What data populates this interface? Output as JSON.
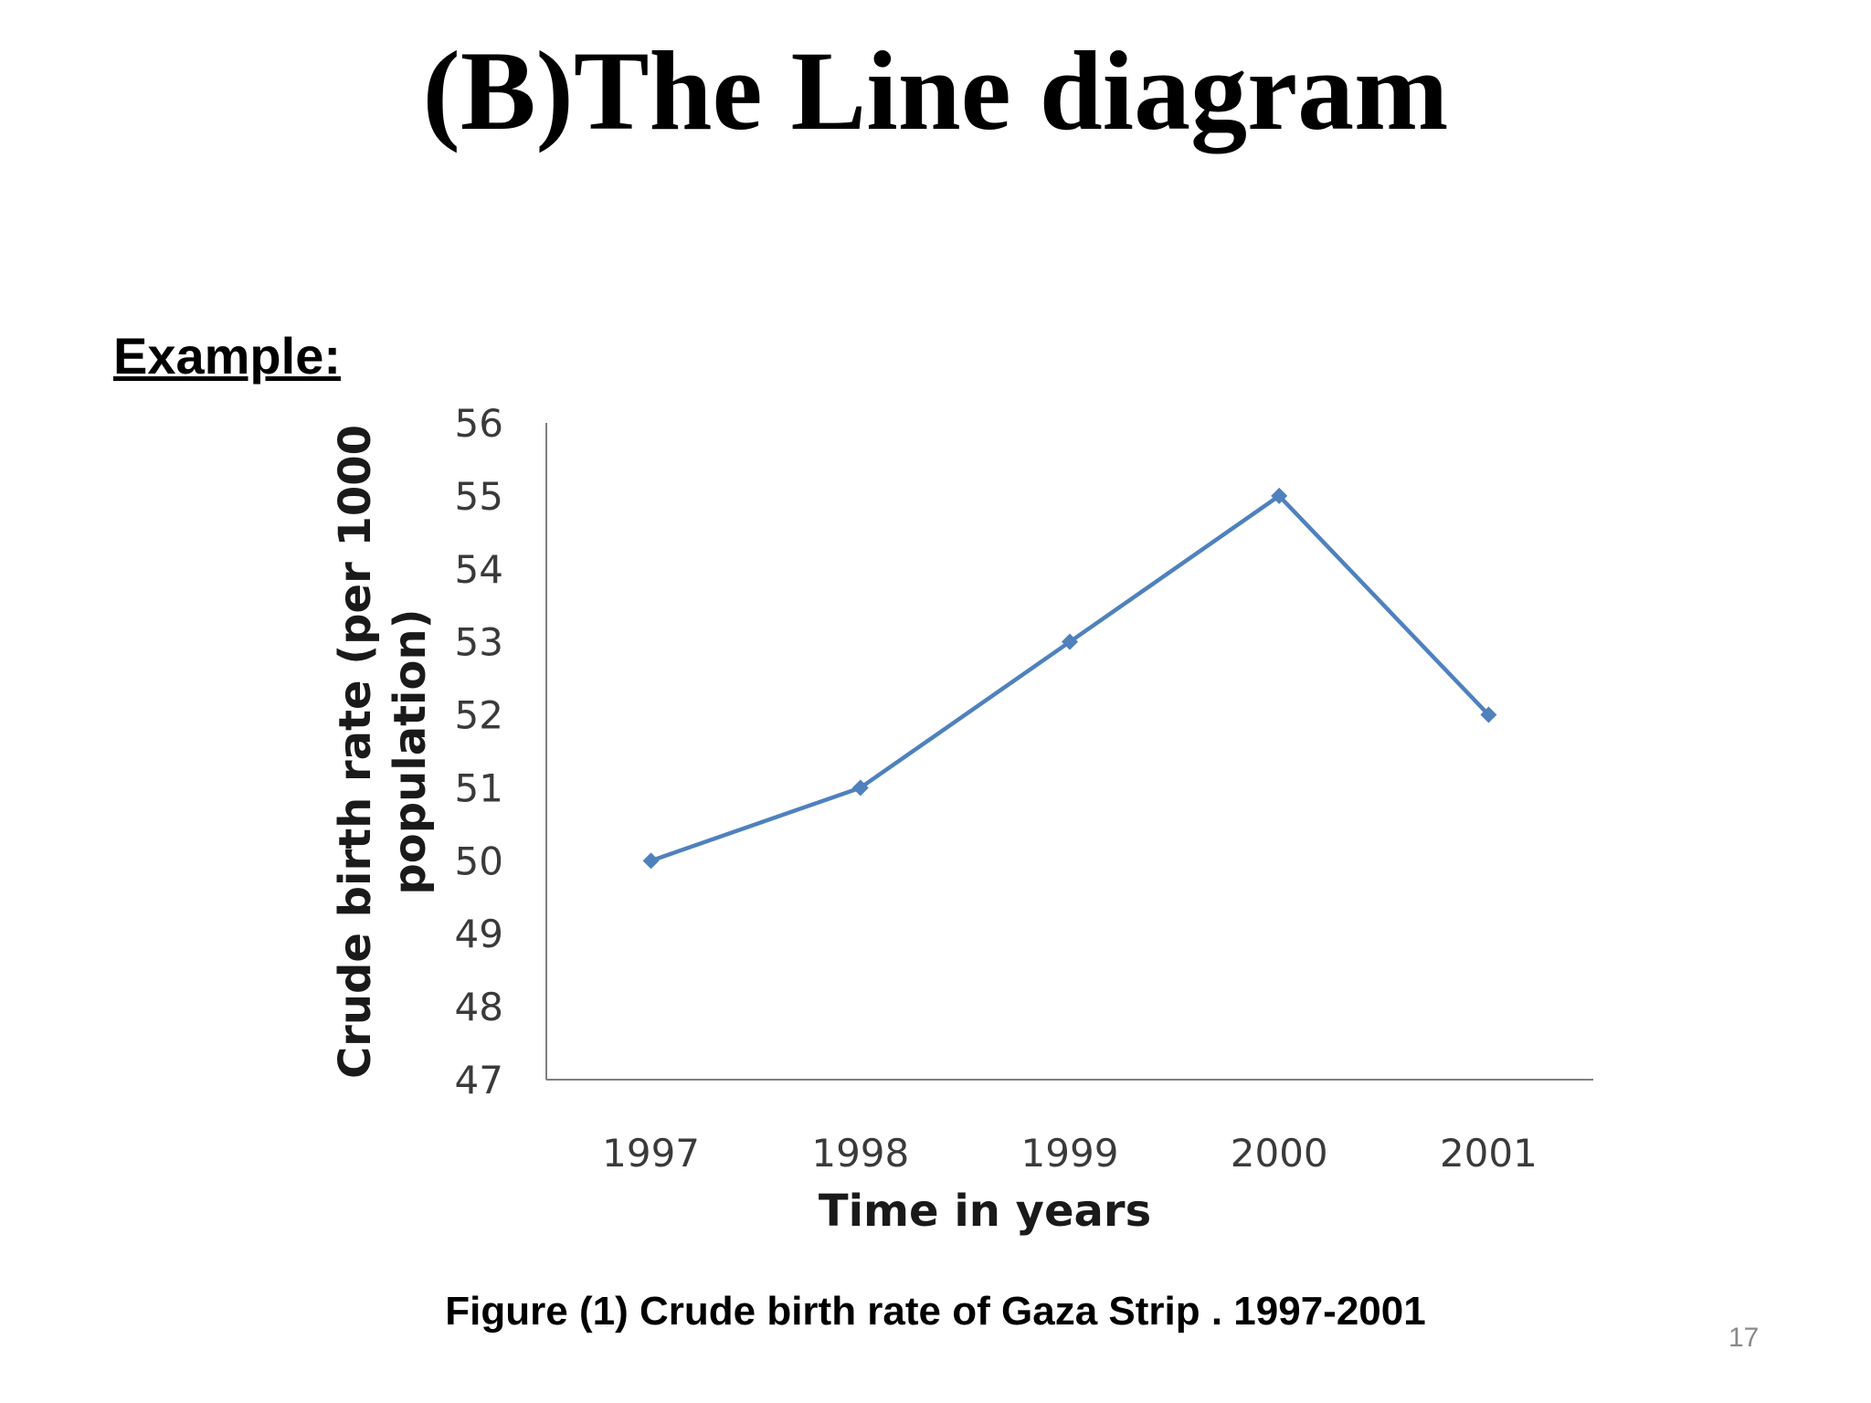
{
  "slide": {
    "title": "(B)The Line diagram",
    "example_label": "Example:",
    "caption": "Figure (1) Crude birth rate of Gaza Strip . 1997-2001",
    "page_number": "17"
  },
  "chart_data": {
    "type": "line",
    "categories": [
      "1997",
      "1998",
      "1999",
      "2000",
      "2001"
    ],
    "series": [
      {
        "values": [
          50,
          51,
          53,
          55,
          52
        ],
        "color": "#4f81bd",
        "marker": "diamond"
      }
    ],
    "xlabel": "Time in years",
    "ylabel_lines": [
      "Crude birth rate (per 1000",
      "population)"
    ],
    "ylim": [
      47,
      56
    ],
    "yticks": [
      "47",
      "48",
      "49",
      "50",
      "51",
      "52",
      "53",
      "54",
      "55",
      "56"
    ],
    "grid": false,
    "legend": "none"
  }
}
